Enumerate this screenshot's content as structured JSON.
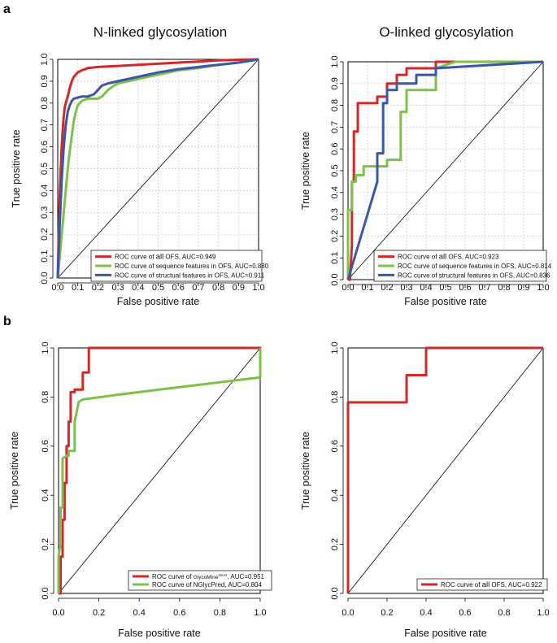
{
  "panel_labels": [
    "a",
    "b"
  ],
  "colors": {
    "red": "#d62728",
    "green": "#7cc14a",
    "blue": "#3b58a8",
    "diag": "#000000",
    "grid": "#c8c8c8"
  },
  "chart_data": [
    {
      "type": "line",
      "title": "N-linked glycosylation",
      "xlabel": "False positive rate",
      "ylabel": "True positive rate",
      "xlim": [
        0,
        1
      ],
      "ylim": [
        0,
        1
      ],
      "ticks": [
        "0.0",
        "0.1",
        "0.2",
        "0.3",
        "0.4",
        "0.5",
        "0.6",
        "0.7",
        "0.8",
        "0.9",
        "1.0"
      ],
      "grid": true,
      "legend_position": "bottom-right",
      "series": [
        {
          "name": "ROC curve of all OFS, AUC=0.949",
          "legend": {
            "prefix": "ROC curve of ",
            "emph": "all",
            "suffix": " OFS, AUC=0.949"
          },
          "color": "#d62728",
          "x": [
            0,
            0.005,
            0.01,
            0.015,
            0.02,
            0.025,
            0.03,
            0.035,
            0.04,
            0.05,
            0.06,
            0.07,
            0.08,
            0.09,
            0.1,
            0.12,
            0.15,
            0.2,
            0.3,
            0.4,
            0.5,
            0.6,
            0.7,
            0.8,
            0.9,
            1.0
          ],
          "y": [
            0,
            0.2,
            0.38,
            0.5,
            0.6,
            0.68,
            0.74,
            0.78,
            0.8,
            0.83,
            0.87,
            0.9,
            0.92,
            0.93,
            0.94,
            0.95,
            0.96,
            0.965,
            0.97,
            0.975,
            0.98,
            0.985,
            0.99,
            0.995,
            0.998,
            1.0
          ]
        },
        {
          "name": "ROC curve of sequence features in OFS, AUC=0.880",
          "color": "#7cc14a",
          "x": [
            0,
            0.01,
            0.02,
            0.03,
            0.04,
            0.05,
            0.06,
            0.07,
            0.08,
            0.09,
            0.1,
            0.12,
            0.15,
            0.2,
            0.22,
            0.25,
            0.28,
            0.3,
            0.35,
            0.4,
            0.5,
            0.6,
            0.7,
            0.8,
            0.9,
            1.0
          ],
          "y": [
            0,
            0.1,
            0.2,
            0.3,
            0.4,
            0.5,
            0.58,
            0.65,
            0.72,
            0.76,
            0.79,
            0.81,
            0.82,
            0.82,
            0.83,
            0.86,
            0.88,
            0.89,
            0.9,
            0.91,
            0.93,
            0.95,
            0.96,
            0.975,
            0.985,
            1.0
          ]
        },
        {
          "name": "ROC curve of structual features in OFS, AUC=0.911",
          "color": "#3b58a8",
          "x": [
            0,
            0.01,
            0.02,
            0.03,
            0.04,
            0.05,
            0.06,
            0.07,
            0.08,
            0.1,
            0.12,
            0.15,
            0.18,
            0.2,
            0.22,
            0.25,
            0.3,
            0.4,
            0.5,
            0.6,
            0.7,
            0.8,
            0.9,
            1.0
          ],
          "y": [
            0,
            0.25,
            0.45,
            0.6,
            0.7,
            0.76,
            0.79,
            0.81,
            0.82,
            0.825,
            0.83,
            0.83,
            0.84,
            0.86,
            0.88,
            0.89,
            0.9,
            0.92,
            0.94,
            0.955,
            0.965,
            0.975,
            0.985,
            1.0
          ]
        }
      ]
    },
    {
      "type": "line",
      "title": "O-linked glycosylation",
      "xlabel": "False positive rate",
      "ylabel": "True positive rate",
      "xlim": [
        0,
        1
      ],
      "ylim": [
        0,
        1
      ],
      "ticks": [
        "0.0",
        "0.1",
        "0.2",
        "0.3",
        "0.4",
        "0.5",
        "0.6",
        "0.7",
        "0.8",
        "0.9",
        "1.0"
      ],
      "grid": true,
      "legend_position": "bottom-right",
      "series": [
        {
          "name": "ROC curve of all OFS, AUC=0.923",
          "legend": {
            "prefix": "ROC curve of ",
            "emph": "all",
            "suffix": " OFS, AUC=0.923"
          },
          "color": "#d62728",
          "x": [
            0,
            0.01,
            0.02,
            0.02,
            0.03,
            0.03,
            0.05,
            0.05,
            0.15,
            0.15,
            0.2,
            0.2,
            0.25,
            0.25,
            0.3,
            0.3,
            0.45,
            0.45,
            0.5,
            1.0
          ],
          "y": [
            0,
            0,
            0.16,
            0.45,
            0.45,
            0.68,
            0.68,
            0.81,
            0.81,
            0.84,
            0.84,
            0.9,
            0.9,
            0.94,
            0.94,
            0.97,
            0.97,
            1.0,
            1.0,
            1.0
          ]
        },
        {
          "name": "ROC curve of sequence features in OFS, AUC=0.814",
          "color": "#7cc14a",
          "x": [
            0,
            0.0,
            0.01,
            0.02,
            0.02,
            0.04,
            0.04,
            0.08,
            0.08,
            0.2,
            0.2,
            0.27,
            0.27,
            0.3,
            0.3,
            0.33,
            0.33,
            0.45,
            0.45,
            0.55,
            1.0
          ],
          "y": [
            0,
            0.32,
            0.32,
            0.32,
            0.45,
            0.45,
            0.48,
            0.48,
            0.52,
            0.52,
            0.55,
            0.55,
            0.77,
            0.77,
            0.87,
            0.87,
            0.87,
            0.87,
            0.97,
            1.0,
            1.0
          ]
        },
        {
          "name": "ROC curve of structural features in OFS, AUC=0.836",
          "color": "#3b58a8",
          "x": [
            0,
            0.15,
            0.15,
            0.18,
            0.18,
            0.2,
            0.2,
            0.25,
            0.25,
            0.35,
            0.35,
            0.45,
            0.45,
            1.0
          ],
          "y": [
            0,
            0.45,
            0.58,
            0.58,
            0.81,
            0.81,
            0.87,
            0.87,
            0.9,
            0.9,
            0.94,
            0.94,
            0.97,
            1.0
          ]
        }
      ]
    },
    {
      "type": "line",
      "title": "",
      "xlabel": "False positive rate",
      "ylabel": "True positive rate",
      "xlim": [
        0,
        1
      ],
      "ylim": [
        0,
        1
      ],
      "ticks": [
        "0.0",
        "0.2",
        "0.4",
        "0.6",
        "0.8",
        "1.0"
      ],
      "grid": false,
      "legend_position": "bottom-right",
      "series": [
        {
          "name": "ROC curve of GlycoMine(struct), AUC=0.951",
          "legend": {
            "prefix": "ROC curve of ",
            "small": "GlycoMine",
            "sup": "struct",
            "suffix": ", AUC=0.951"
          },
          "color": "#d62728",
          "x": [
            0,
            0.01,
            0.01,
            0.02,
            0.02,
            0.03,
            0.03,
            0.04,
            0.04,
            0.05,
            0.05,
            0.06,
            0.06,
            0.08,
            0.08,
            0.12,
            0.12,
            0.15,
            0.15,
            1.0,
            1.0
          ],
          "y": [
            0,
            0,
            0.15,
            0.15,
            0.3,
            0.3,
            0.45,
            0.45,
            0.6,
            0.6,
            0.7,
            0.7,
            0.82,
            0.82,
            0.83,
            0.83,
            0.9,
            0.9,
            1.0,
            1.0,
            0.88
          ]
        },
        {
          "name": "ROC curve of NGlycPred, AUC=0.804",
          "color": "#7cc14a",
          "x": [
            0,
            0.0,
            0.01,
            0.01,
            0.02,
            0.02,
            0.04,
            0.05,
            0.05,
            0.08,
            0.08,
            0.09,
            0.1,
            0.12,
            0.3,
            0.5,
            0.7,
            0.9,
            1.0,
            1.0
          ],
          "y": [
            0,
            0.15,
            0.2,
            0.35,
            0.35,
            0.55,
            0.56,
            0.56,
            0.58,
            0.58,
            0.7,
            0.74,
            0.78,
            0.79,
            0.81,
            0.83,
            0.85,
            0.87,
            0.88,
            1.0
          ]
        }
      ]
    },
    {
      "type": "line",
      "title": "",
      "xlabel": "False positive rate",
      "ylabel": "True positive rate",
      "xlim": [
        0,
        1
      ],
      "ylim": [
        0,
        1
      ],
      "ticks": [
        "0.0",
        "0.2",
        "0.4",
        "0.6",
        "0.8",
        "1.0"
      ],
      "grid": false,
      "legend_position": "bottom-right",
      "series": [
        {
          "name": "ROC curve of all OFS, AUC=0.922",
          "legend": {
            "prefix": "ROC curve of ",
            "emph": "all",
            "suffix": " OFS, AUC=0.922"
          },
          "color": "#d62728",
          "x": [
            0,
            0.0,
            0.3,
            0.3,
            0.4,
            0.4,
            1.0
          ],
          "y": [
            0,
            0.778,
            0.778,
            0.889,
            0.889,
            1.0,
            1.0
          ]
        }
      ]
    }
  ]
}
